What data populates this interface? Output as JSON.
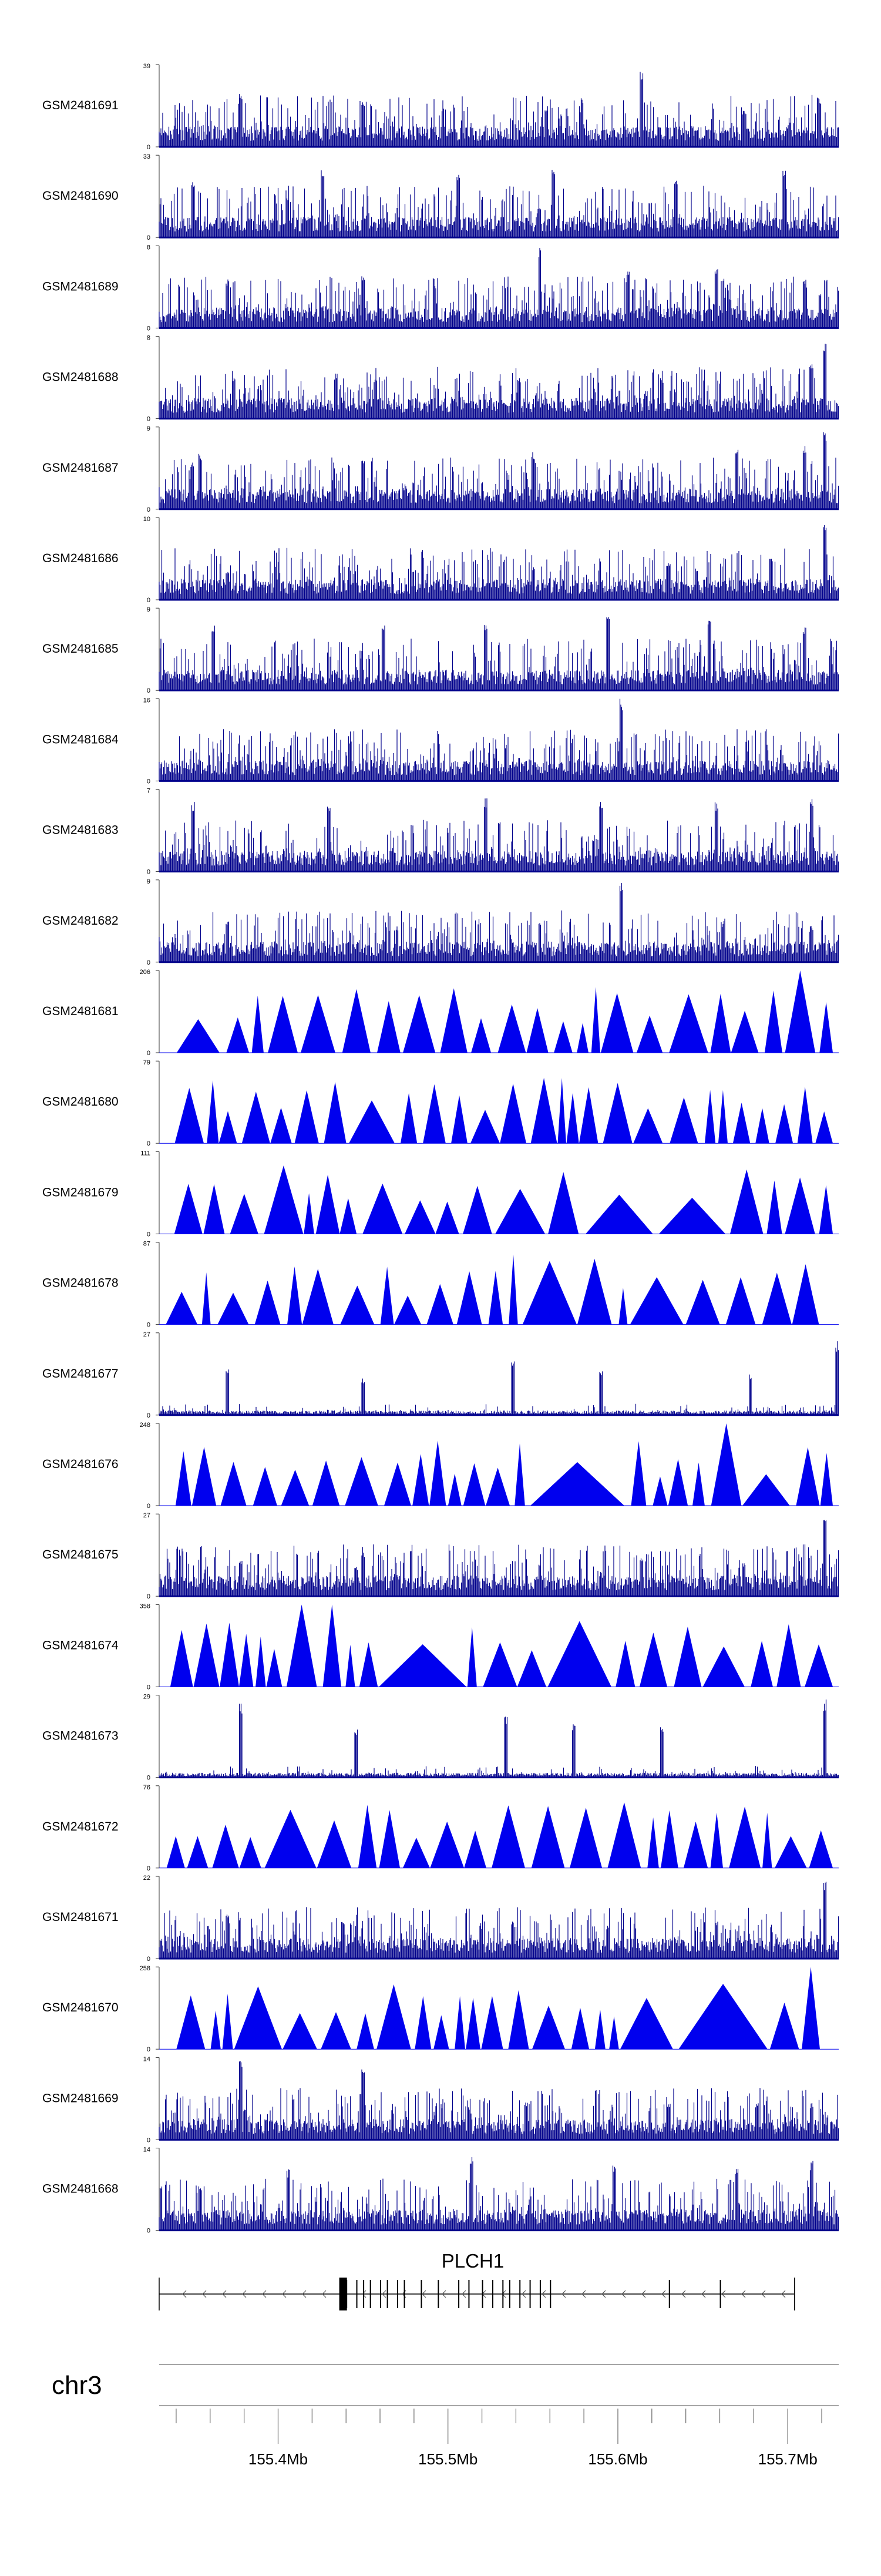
{
  "chart_data": {
    "type": "area",
    "description_of_view": "genome browser coverage tracks",
    "tracks": [
      {
        "name": "GSM2481691",
        "ymax": "39",
        "ymin": "0",
        "style": "dense",
        "peaks": [
          [
            0.12,
            0.65
          ],
          [
            0.3,
            0.55
          ],
          [
            0.57,
            0.5
          ],
          [
            0.71,
            0.95
          ],
          [
            0.86,
            0.45
          ],
          [
            0.97,
            0.6
          ]
        ]
      },
      {
        "name": "GSM2481690",
        "ymax": "33",
        "ymin": "0",
        "style": "dense",
        "peaks": [
          [
            0.05,
            0.7
          ],
          [
            0.24,
            0.85
          ],
          [
            0.44,
            0.8
          ],
          [
            0.58,
            0.9
          ],
          [
            0.76,
            0.75
          ],
          [
            0.92,
            0.85
          ]
        ]
      },
      {
        "name": "GSM2481689",
        "ymax": "8",
        "ymin": "0",
        "style": "dense",
        "peaks": [
          [
            0.1,
            0.6
          ],
          [
            0.3,
            0.65
          ],
          [
            0.56,
            1.0
          ],
          [
            0.69,
            0.7
          ],
          [
            0.82,
            0.75
          ],
          [
            0.95,
            0.6
          ]
        ]
      },
      {
        "name": "GSM2481688",
        "ymax": "8",
        "ymin": "0",
        "style": "dense",
        "peaks": [
          [
            0.11,
            0.5
          ],
          [
            0.26,
            0.55
          ],
          [
            0.53,
            0.5
          ],
          [
            0.74,
            0.5
          ],
          [
            0.96,
            0.7
          ],
          [
            0.98,
            0.95
          ]
        ]
      },
      {
        "name": "GSM2481687",
        "ymax": "9",
        "ymin": "0",
        "style": "dense",
        "peaks": [
          [
            0.06,
            0.7
          ],
          [
            0.3,
            0.65
          ],
          [
            0.55,
            0.7
          ],
          [
            0.85,
            0.75
          ],
          [
            0.95,
            0.8
          ],
          [
            0.98,
            0.95
          ]
        ]
      },
      {
        "name": "GSM2481686",
        "ymax": "10",
        "ymin": "0",
        "style": "dense",
        "peaks": [
          [
            0.1,
            0.35
          ],
          [
            0.28,
            0.4
          ],
          [
            0.55,
            0.4
          ],
          [
            0.75,
            0.45
          ],
          [
            0.9,
            0.5
          ],
          [
            0.98,
            0.95
          ]
        ]
      },
      {
        "name": "GSM2481685",
        "ymax": "9",
        "ymin": "0",
        "style": "dense",
        "peaks": [
          [
            0.08,
            0.8
          ],
          [
            0.33,
            0.85
          ],
          [
            0.48,
            0.8
          ],
          [
            0.66,
            0.9
          ],
          [
            0.81,
            0.85
          ],
          [
            0.95,
            0.8
          ]
        ]
      },
      {
        "name": "GSM2481684",
        "ymax": "16",
        "ymin": "0",
        "style": "dense",
        "peaks": [
          [
            0.18,
            0.2
          ],
          [
            0.45,
            0.25
          ],
          [
            0.68,
            1.0
          ],
          [
            0.8,
            0.2
          ],
          [
            0.92,
            0.25
          ]
        ]
      },
      {
        "name": "GSM2481683",
        "ymax": "7",
        "ymin": "0",
        "style": "dense",
        "peaks": [
          [
            0.05,
            0.85
          ],
          [
            0.25,
            0.85
          ],
          [
            0.48,
            0.9
          ],
          [
            0.65,
            0.85
          ],
          [
            0.82,
            0.85
          ],
          [
            0.96,
            0.9
          ]
        ]
      },
      {
        "name": "GSM2481682",
        "ymax": "9",
        "ymin": "0",
        "style": "dense",
        "peaks": [
          [
            0.1,
            0.5
          ],
          [
            0.35,
            0.45
          ],
          [
            0.56,
            0.5
          ],
          [
            0.68,
            1.0
          ],
          [
            0.83,
            0.5
          ],
          [
            0.96,
            0.45
          ]
        ]
      },
      {
        "name": "GSM2481681",
        "ymax": "206",
        "ymin": "0",
        "style": "triangles",
        "seed": 11
      },
      {
        "name": "GSM2481680",
        "ymax": "79",
        "ymin": "0",
        "style": "triangles",
        "seed": 23
      },
      {
        "name": "GSM2481679",
        "ymax": "111",
        "ymin": "0",
        "style": "triangles",
        "seed": 37
      },
      {
        "name": "GSM2481678",
        "ymax": "87",
        "ymin": "0",
        "style": "triangles",
        "seed": 41
      },
      {
        "name": "GSM2481677",
        "ymax": "27",
        "ymin": "0",
        "style": "sparse",
        "peaks": [
          [
            0.1,
            0.6
          ],
          [
            0.3,
            0.45
          ],
          [
            0.52,
            0.7
          ],
          [
            0.65,
            0.55
          ],
          [
            0.87,
            0.5
          ],
          [
            0.998,
            0.9
          ]
        ]
      },
      {
        "name": "GSM2481676",
        "ymax": "248",
        "ymin": "0",
        "style": "triangles",
        "seed": 53
      },
      {
        "name": "GSM2481675",
        "ymax": "27",
        "ymin": "0",
        "style": "dense",
        "peaks": [
          [
            0.12,
            0.45
          ],
          [
            0.3,
            0.55
          ],
          [
            0.56,
            0.4
          ],
          [
            0.71,
            0.45
          ],
          [
            0.86,
            0.4
          ],
          [
            0.98,
            0.95
          ]
        ]
      },
      {
        "name": "GSM2481674",
        "ymax": "358",
        "ymin": "0",
        "style": "triangles",
        "seed": 61
      },
      {
        "name": "GSM2481673",
        "ymax": "29",
        "ymin": "0",
        "style": "sparse",
        "peaks": [
          [
            0.12,
            0.9
          ],
          [
            0.29,
            0.6
          ],
          [
            0.51,
            0.75
          ],
          [
            0.61,
            0.65
          ],
          [
            0.74,
            0.65
          ],
          [
            0.98,
            0.95
          ]
        ]
      },
      {
        "name": "GSM2481672",
        "ymax": "76",
        "ymin": "0",
        "style": "triangles",
        "seed": 71
      },
      {
        "name": "GSM2481671",
        "ymax": "22",
        "ymin": "0",
        "style": "dense",
        "peaks": [
          [
            0.1,
            0.55
          ],
          [
            0.27,
            0.45
          ],
          [
            0.52,
            0.45
          ],
          [
            0.66,
            0.4
          ],
          [
            0.82,
            0.45
          ],
          [
            0.98,
            0.95
          ]
        ]
      },
      {
        "name": "GSM2481670",
        "ymax": "258",
        "ymin": "0",
        "style": "triangles",
        "seed": 83
      },
      {
        "name": "GSM2481669",
        "ymax": "14",
        "ymin": "0",
        "style": "dense",
        "peaks": [
          [
            0.12,
            1.0
          ],
          [
            0.3,
            0.95
          ],
          [
            0.54,
            0.45
          ],
          [
            0.75,
            0.45
          ],
          [
            0.88,
            0.45
          ],
          [
            0.96,
            0.45
          ]
        ]
      },
      {
        "name": "GSM2481668",
        "ymax": "14",
        "ymin": "0",
        "style": "dense",
        "peaks": [
          [
            0.06,
            0.55
          ],
          [
            0.19,
            0.75
          ],
          [
            0.46,
            0.9
          ],
          [
            0.67,
            0.8
          ],
          [
            0.85,
            0.8
          ],
          [
            0.96,
            0.85
          ]
        ]
      }
    ],
    "gene": {
      "name": "PLCH1",
      "start": 0.0,
      "end": 0.935
    },
    "chromosome": "chr3",
    "axis": {
      "range": [
        155.33,
        155.73
      ],
      "ticks": [
        155.4,
        155.5,
        155.6,
        155.7
      ],
      "tick_labels": [
        "155.4Mb",
        "155.5Mb",
        "155.6Mb",
        "155.7Mb"
      ]
    },
    "colors": {
      "fill": "#0000ee",
      "dense": "#00008b",
      "axis": "#000000",
      "gene": "#000000"
    }
  }
}
